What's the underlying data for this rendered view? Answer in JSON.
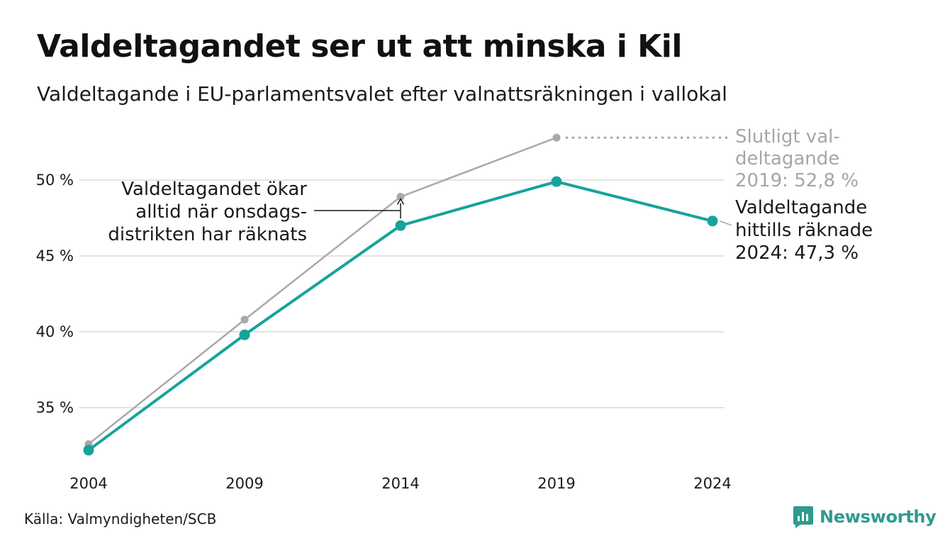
{
  "header": {
    "title": "Valdeltagandet ser ut att minska i Kil",
    "subtitle": "Valdeltagande i EU-parlamentsvalet efter valnattsräkningen i vallokal"
  },
  "footer": {
    "source": "Källa: Valmyndigheten/SCB",
    "brand": "Newsworthy"
  },
  "colors": {
    "accent": "#16a39a",
    "final": "#a9a9a9",
    "text": "#1a1a1a",
    "muted": "#a6a6a6",
    "grid": "#e3e3e3",
    "brand": "#2f9a8f"
  },
  "chart_data": {
    "type": "line",
    "x": [
      2004,
      2009,
      2014,
      2019,
      2024
    ],
    "xlim": [
      2004,
      2024
    ],
    "ylim": [
      32.5,
      52.5
    ],
    "yticks": [
      35,
      40,
      45,
      50
    ],
    "ytick_labels": [
      "35 %",
      "40 %",
      "45 %",
      "50 %"
    ],
    "xtick_labels": [
      "2004",
      "2009",
      "2014",
      "2019",
      "2024"
    ],
    "grid": true,
    "series": [
      {
        "key": "final",
        "values": [
          32.6,
          40.8,
          48.9,
          52.8,
          null
        ]
      },
      {
        "key": "counted",
        "values": [
          32.2,
          39.8,
          47.0,
          49.9,
          47.3
        ]
      }
    ],
    "annotations": {
      "wednesday": [
        "Valdeltagandet ökar",
        "alltid när onsdags-",
        "distrikten har räknats"
      ],
      "final_label": [
        "Slutligt val-",
        "deltagande",
        "2019: 52,8 %"
      ],
      "counted_label": [
        "Valdeltagande",
        "hittills räknade",
        "2024: 47,3 %"
      ]
    }
  }
}
